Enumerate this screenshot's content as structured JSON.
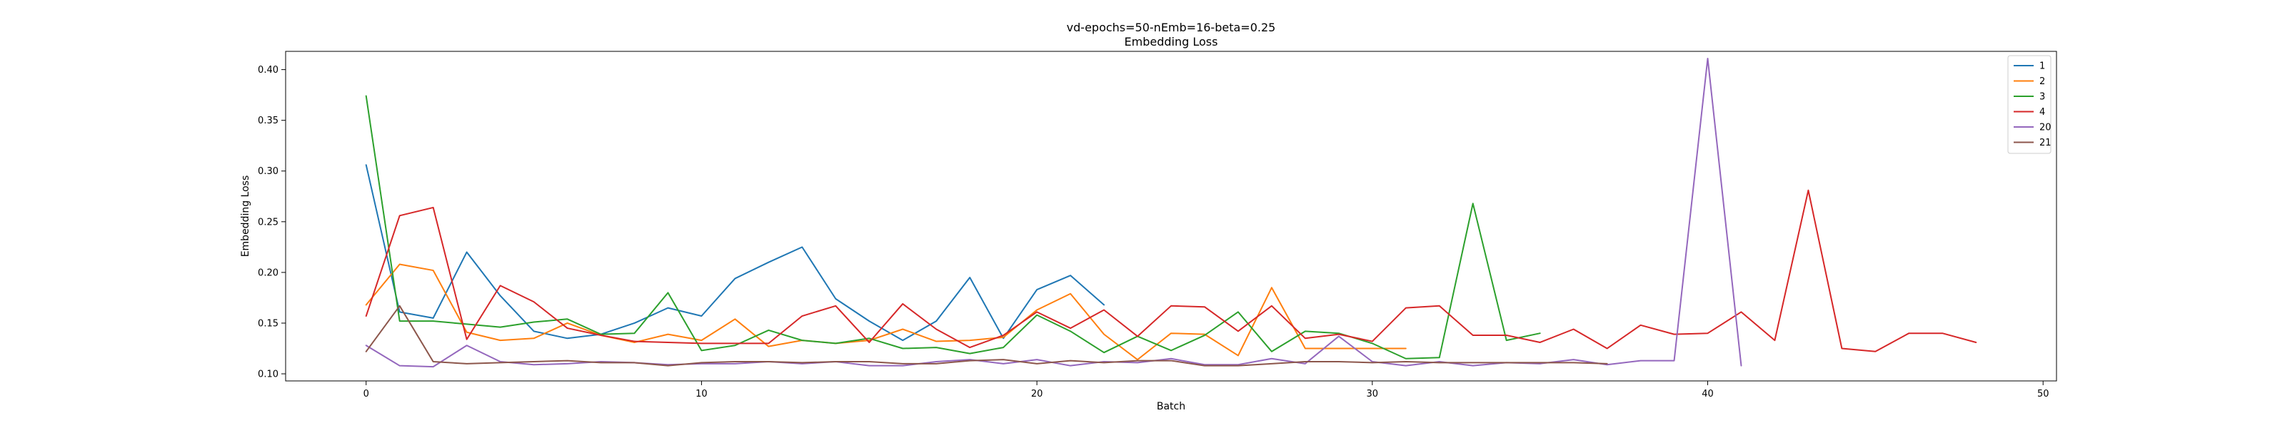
{
  "chart_data": {
    "type": "line",
    "title": "vd-epochs=50-nEmb=16-beta=0.25",
    "subtitle": "Embedding Loss",
    "xlabel": "Batch",
    "ylabel": "Embedding Loss",
    "xlim": [
      -2.4,
      50.4
    ],
    "ylim": [
      0.093,
      0.418
    ],
    "xticks": [
      0,
      10,
      20,
      30,
      40,
      50
    ],
    "yticks": [
      "0.10",
      "0.15",
      "0.20",
      "0.25",
      "0.30",
      "0.35",
      "0.40"
    ],
    "grid": false,
    "legend_position": "top-right",
    "series": [
      {
        "name": "1",
        "color": "#1f77b4",
        "values": [
          0.306,
          0.161,
          0.155,
          0.22,
          0.177,
          0.142,
          0.135,
          0.139,
          0.15,
          0.165,
          0.157,
          0.194,
          0.21,
          0.225,
          0.174,
          0.152,
          0.133,
          0.152,
          0.195,
          0.135,
          0.183,
          0.197,
          0.168
        ]
      },
      {
        "name": "2",
        "color": "#ff7f0e",
        "values": [
          0.168,
          0.208,
          0.202,
          0.141,
          0.133,
          0.135,
          0.15,
          0.138,
          0.131,
          0.139,
          0.133,
          0.154,
          0.127,
          0.133,
          0.13,
          0.133,
          0.144,
          0.132,
          0.133,
          0.136,
          0.163,
          0.179,
          0.139,
          0.114,
          0.14,
          0.139,
          0.118,
          0.185,
          0.125,
          0.125,
          0.125,
          0.125
        ]
      },
      {
        "name": "3",
        "color": "#2ca02c",
        "values": [
          0.374,
          0.152,
          0.152,
          0.149,
          0.146,
          0.151,
          0.154,
          0.139,
          0.14,
          0.18,
          0.123,
          0.128,
          0.143,
          0.133,
          0.13,
          0.135,
          0.125,
          0.126,
          0.12,
          0.126,
          0.158,
          0.142,
          0.121,
          0.137,
          0.123,
          0.138,
          0.161,
          0.122,
          0.142,
          0.14,
          0.13,
          0.115,
          0.116,
          0.268,
          0.133,
          0.14
        ]
      },
      {
        "name": "4",
        "color": "#d62728",
        "values": [
          0.157,
          0.256,
          0.264,
          0.134,
          0.187,
          0.171,
          0.145,
          0.138,
          0.132,
          0.131,
          0.13,
          0.13,
          0.13,
          0.157,
          0.167,
          0.131,
          0.169,
          0.144,
          0.126,
          0.138,
          0.161,
          0.145,
          0.163,
          0.137,
          0.167,
          0.166,
          0.142,
          0.167,
          0.135,
          0.139,
          0.132,
          0.165,
          0.167,
          0.138,
          0.138,
          0.131,
          0.144,
          0.125,
          0.148,
          0.139,
          0.14,
          0.161,
          0.133,
          0.281,
          0.125,
          0.122,
          0.14,
          0.14,
          0.131
        ]
      },
      {
        "name": "20",
        "color": "#9467bd",
        "values": [
          0.128,
          0.108,
          0.107,
          0.128,
          0.112,
          0.109,
          0.11,
          0.112,
          0.111,
          0.109,
          0.11,
          0.11,
          0.112,
          0.11,
          0.112,
          0.108,
          0.108,
          0.112,
          0.114,
          0.11,
          0.114,
          0.108,
          0.112,
          0.111,
          0.115,
          0.109,
          0.109,
          0.115,
          0.11,
          0.137,
          0.112,
          0.108,
          0.112,
          0.108,
          0.111,
          0.11,
          0.114,
          0.109,
          0.113,
          0.113,
          0.411,
          0.108
        ]
      },
      {
        "name": "21",
        "color": "#8c564b",
        "values": [
          0.122,
          0.167,
          0.112,
          0.11,
          0.111,
          0.112,
          0.113,
          0.111,
          0.111,
          0.108,
          0.111,
          0.112,
          0.112,
          0.111,
          0.112,
          0.112,
          0.11,
          0.11,
          0.113,
          0.114,
          0.11,
          0.113,
          0.111,
          0.113,
          0.113,
          0.108,
          0.108,
          0.11,
          0.112,
          0.112,
          0.111,
          0.112,
          0.111,
          0.111,
          0.111,
          0.111,
          0.111,
          0.11
        ]
      }
    ]
  }
}
